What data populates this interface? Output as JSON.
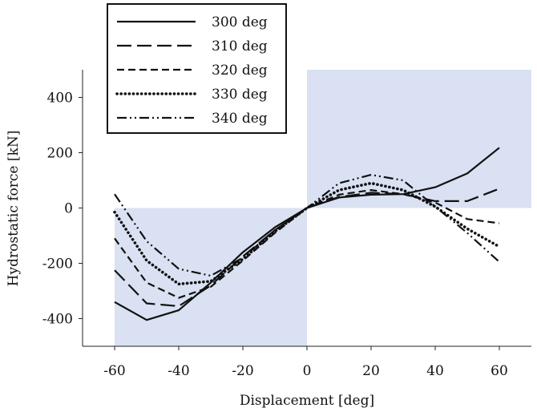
{
  "chart_data": {
    "type": "line",
    "title": "",
    "xlabel": "Displacement [deg]",
    "ylabel": "Hydrostatic force [kN]",
    "xlim": [
      -70,
      70
    ],
    "ylim": [
      -500,
      500
    ],
    "x_ticks": [
      -60,
      -40,
      -20,
      0,
      20,
      40,
      60
    ],
    "y_ticks": [
      -400,
      -200,
      0,
      200,
      400
    ],
    "grid": false,
    "legend_position": "top-left",
    "shaded_quadrants": [
      "x<0 & y<0",
      "x>0 & y>0"
    ],
    "shade_color": "#d9e1f2",
    "series": [
      {
        "name": "300 deg",
        "style": "solid",
        "x": [
          -60,
          -50,
          -40,
          -30,
          -20,
          -10,
          0,
          10,
          20,
          30,
          40,
          50,
          60
        ],
        "y": [
          -340,
          -405,
          -370,
          -270,
          -160,
          -70,
          0,
          38,
          48,
          50,
          75,
          125,
          218
        ]
      },
      {
        "name": "310 deg",
        "style": "long-dash",
        "x": [
          -60,
          -50,
          -40,
          -30,
          -20,
          -10,
          0,
          10,
          20,
          30,
          40,
          50,
          60
        ],
        "y": [
          -225,
          -345,
          -355,
          -280,
          -175,
          -80,
          0,
          40,
          55,
          50,
          25,
          25,
          70
        ]
      },
      {
        "name": "320 deg",
        "style": "short-dash",
        "x": [
          -60,
          -50,
          -40,
          -30,
          -20,
          -10,
          0,
          10,
          20,
          30,
          40,
          50,
          60
        ],
        "y": [
          -110,
          -270,
          -325,
          -285,
          -190,
          -90,
          0,
          48,
          65,
          50,
          20,
          -40,
          -55
        ]
      },
      {
        "name": "330 deg",
        "style": "dotted",
        "x": [
          -60,
          -50,
          -40,
          -30,
          -20,
          -10,
          0,
          10,
          20,
          30,
          40,
          50,
          60
        ],
        "y": [
          -15,
          -190,
          -275,
          -265,
          -185,
          -85,
          0,
          65,
          90,
          65,
          5,
          -75,
          -140
        ]
      },
      {
        "name": "340 deg",
        "style": "dash-dot-dot",
        "x": [
          -60,
          -50,
          -40,
          -30,
          -20,
          -10,
          0,
          10,
          20,
          30,
          40,
          50,
          60
        ],
        "y": [
          50,
          -120,
          -220,
          -245,
          -180,
          -80,
          0,
          90,
          120,
          100,
          5,
          -90,
          -195
        ]
      }
    ]
  }
}
